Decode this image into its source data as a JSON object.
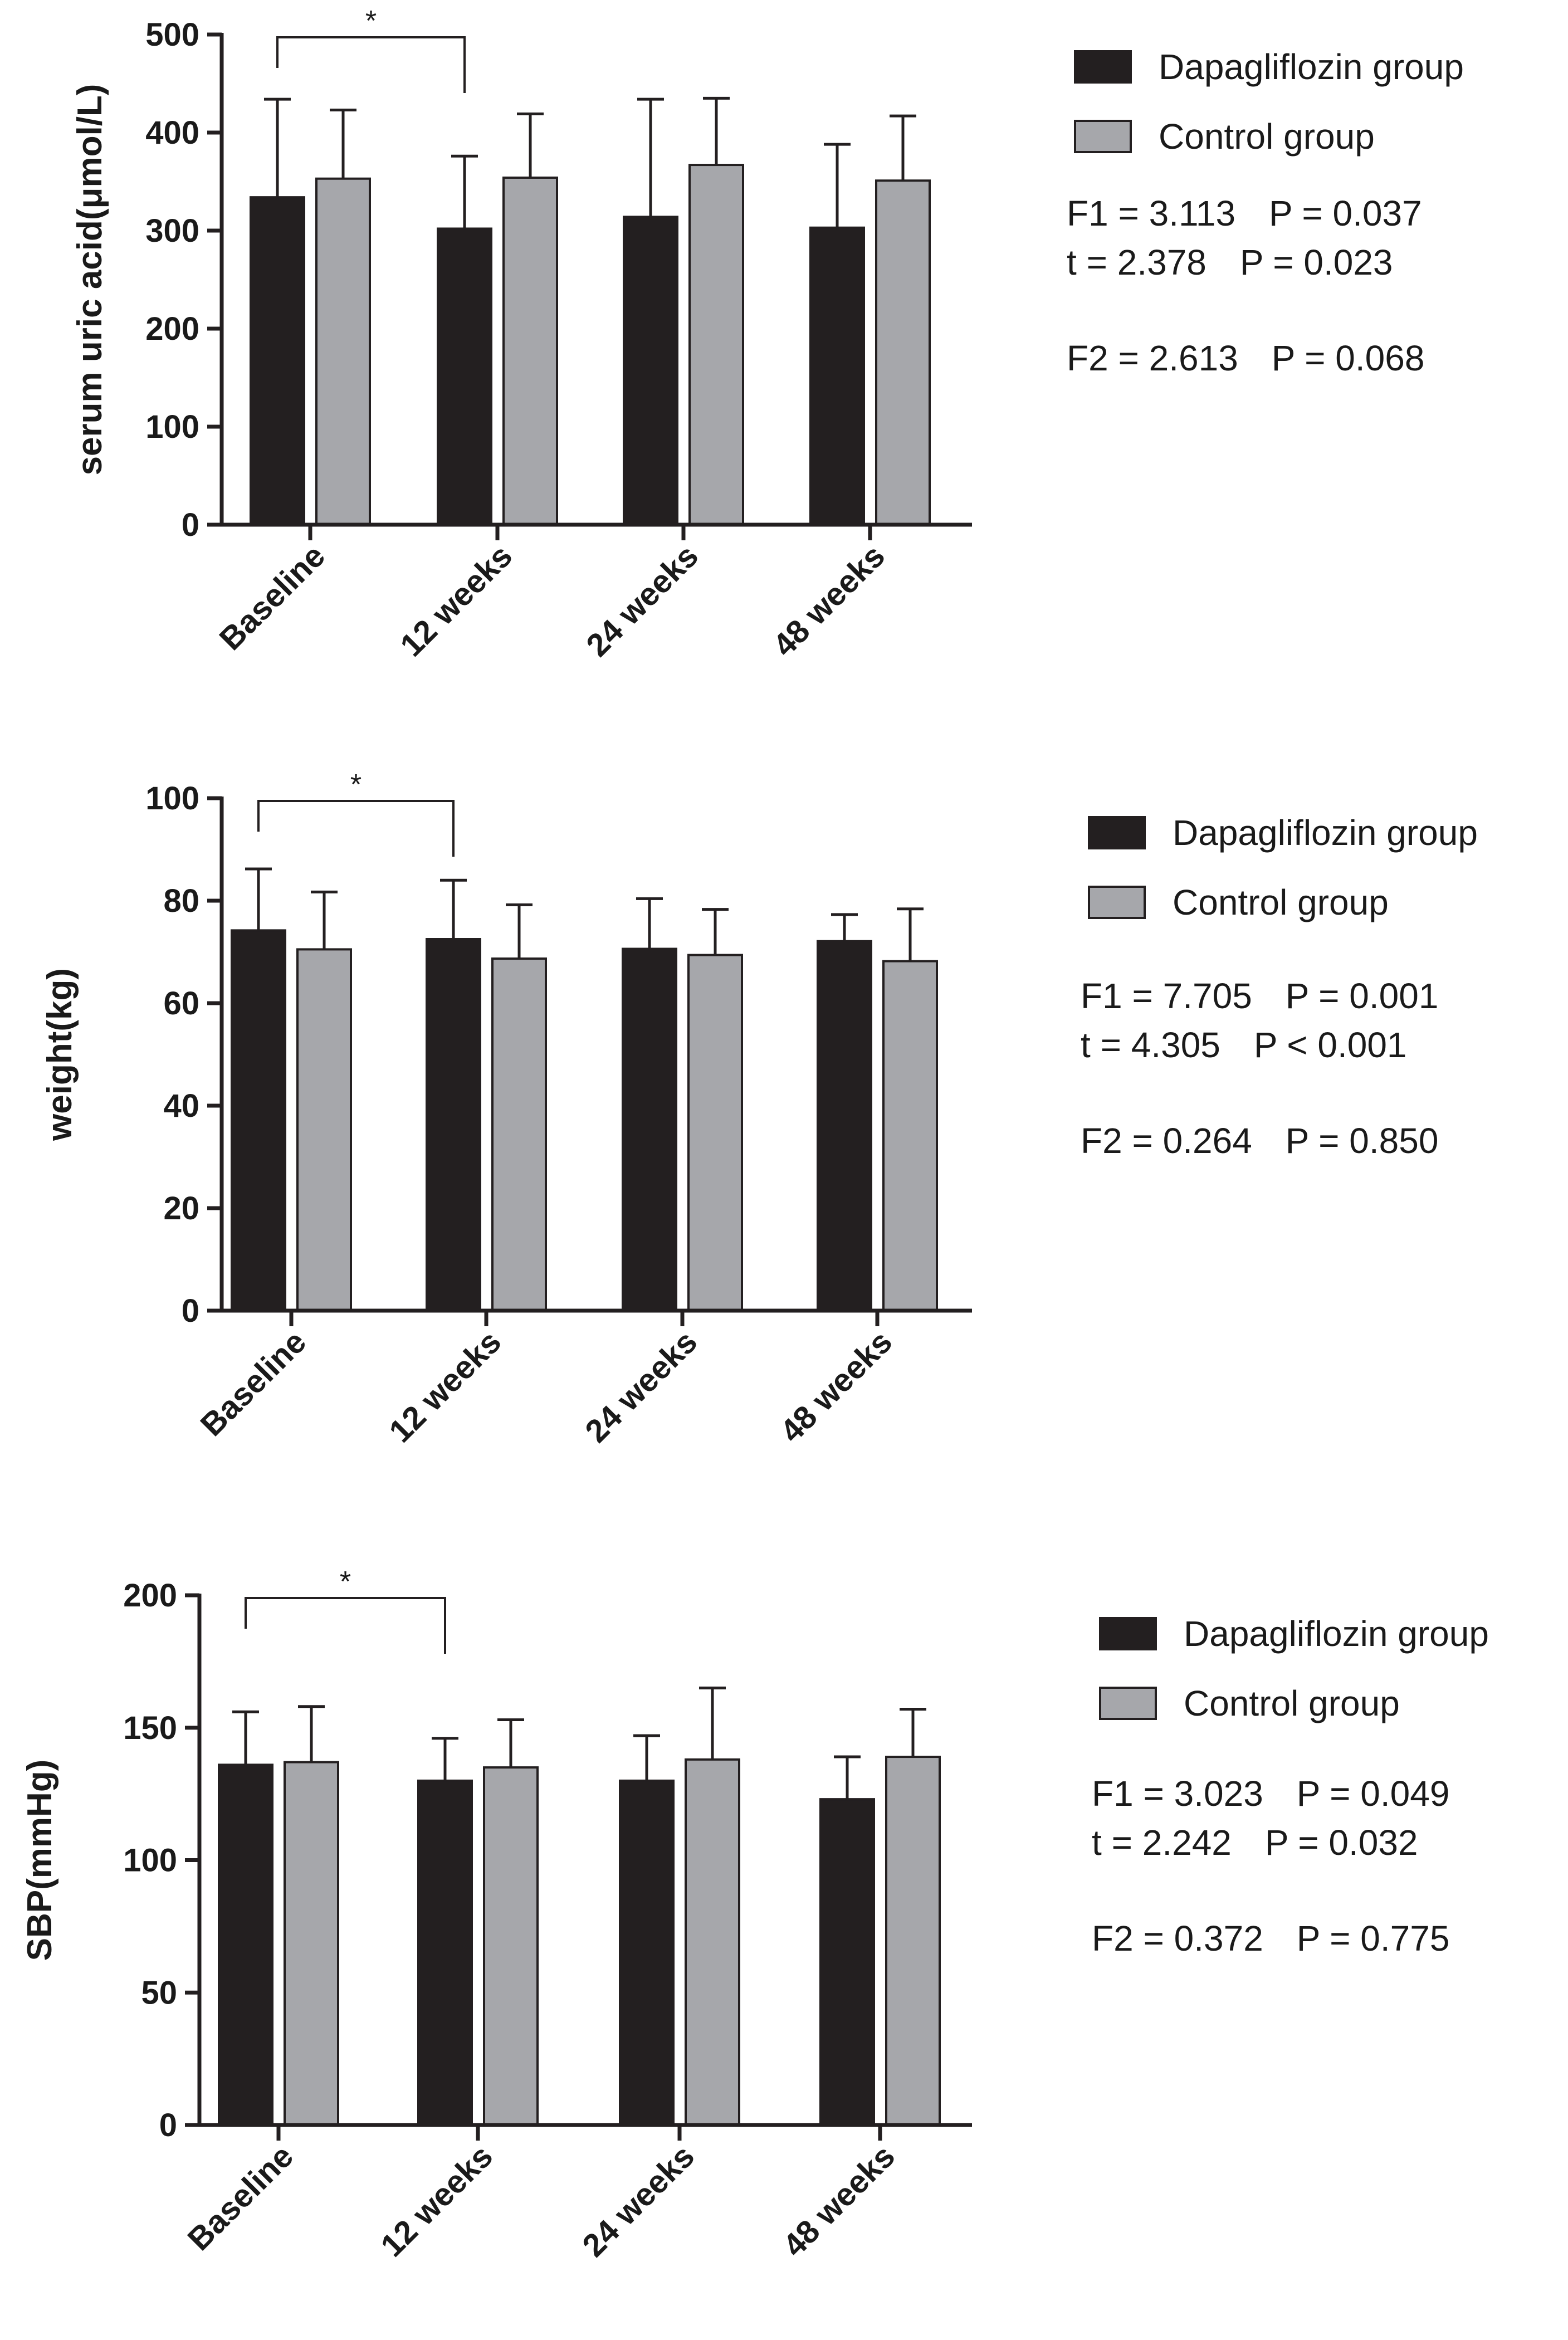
{
  "chart_data": [
    {
      "type": "bar",
      "categories": [
        "Baseline",
        "12 weeks",
        "24 weeks",
        "48 weeks"
      ],
      "ylabel": "serum uric acid(μmol/L)",
      "xlabel": "",
      "ylim": [
        0,
        500
      ],
      "yticks": [
        "0",
        "100",
        "200",
        "300",
        "400",
        "500"
      ],
      "series": [
        {
          "name": "Dapagliflozin group",
          "color": "#231f20",
          "values": [
            334,
            302,
            314,
            303
          ],
          "err": [
            100,
            74,
            120,
            85
          ]
        },
        {
          "name": "Control group",
          "color": "#a6a7ab",
          "values": [
            353,
            354,
            367,
            351
          ],
          "err": [
            70,
            65,
            68,
            66
          ]
        }
      ],
      "significance": {
        "label": "*",
        "from": "Baseline",
        "to": "12 weeks"
      },
      "stats": [
        "F1 = 3.113",
        "P = 0.037",
        "t = 2.378",
        "P = 0.023",
        "F2 = 2.613",
        "P = 0.068"
      ]
    },
    {
      "type": "bar",
      "categories": [
        "Baseline",
        "12 weeks",
        "24 weeks",
        "48 weeks"
      ],
      "ylabel": "weight(kg)",
      "xlabel": "",
      "ylim": [
        0,
        100
      ],
      "yticks": [
        "0",
        "20",
        "40",
        "60",
        "80",
        "100"
      ],
      "series": [
        {
          "name": "Dapagliflozin group",
          "color": "#231f20",
          "values": [
            74.2,
            72.5,
            70.6,
            72.1
          ],
          "err": [
            12,
            11.5,
            9.8,
            5.2
          ]
        },
        {
          "name": "Control group",
          "color": "#a6a7ab",
          "values": [
            70.5,
            68.7,
            69.4,
            68.2
          ],
          "err": [
            11.2,
            10.5,
            8.9,
            10.2
          ]
        }
      ],
      "significance": {
        "label": "*",
        "from": "Baseline",
        "to": "12 weeks"
      },
      "stats": [
        "F1 = 7.705",
        "P = 0.001",
        "t = 4.305",
        "P < 0.001",
        "F2 = 0.264",
        "P = 0.850"
      ]
    },
    {
      "type": "bar",
      "categories": [
        "Baseline",
        "12 weeks",
        "24 weeks",
        "48 weeks"
      ],
      "ylabel": "SBP(mmHg)",
      "xlabel": "",
      "ylim": [
        0,
        200
      ],
      "yticks": [
        "0",
        "50",
        "100",
        "150",
        "200"
      ],
      "series": [
        {
          "name": "Dapagliflozin group",
          "color": "#231f20",
          "values": [
            136,
            130,
            130,
            123
          ],
          "err": [
            20,
            16,
            17,
            16
          ]
        },
        {
          "name": "Control group",
          "color": "#a6a7ab",
          "values": [
            137,
            135,
            138,
            139
          ],
          "err": [
            21,
            18,
            27,
            18
          ]
        }
      ],
      "significance": {
        "label": "*",
        "from": "Baseline",
        "to": "12 weeks"
      },
      "stats": [
        "F1 = 3.023",
        "P = 0.049",
        "t = 2.242",
        "P = 0.032",
        "F2 = 0.372",
        "P = 0.775"
      ]
    }
  ]
}
